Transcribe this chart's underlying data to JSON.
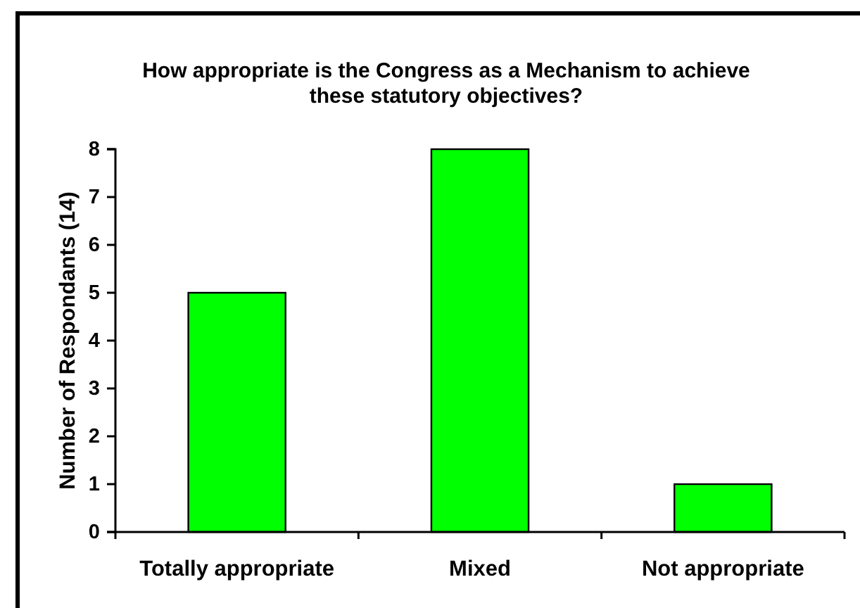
{
  "chart_data": {
    "type": "bar",
    "title": "How appropriate is the Congress as a Mechanism to achieve these statutory objectives?",
    "ylabel": "Number of Respondants (14)",
    "categories": [
      "Totally appropriate",
      "Mixed",
      "Not appropriate"
    ],
    "values": [
      5,
      8,
      1
    ],
    "color": "#00ff00",
    "ylim": [
      0,
      8
    ],
    "yticks": [
      0,
      1,
      2,
      3,
      4,
      5,
      6,
      7,
      8
    ]
  }
}
